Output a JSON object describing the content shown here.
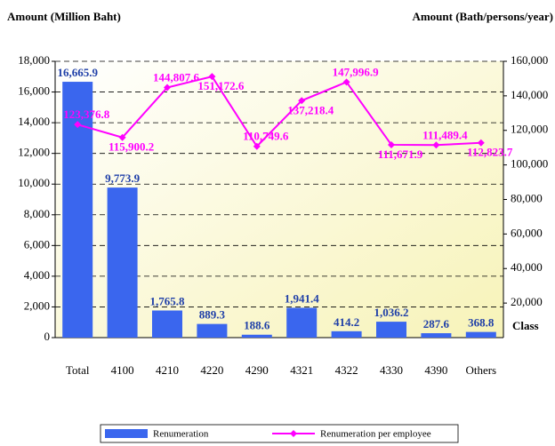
{
  "chart_data": {
    "type": "bar-line",
    "y_title": "Amount (Million Baht)",
    "y2_title": "Amount (Bath/persons/year)",
    "x_title": "Class",
    "categories": [
      "Total",
      "4100",
      "4210",
      "4220",
      "4290",
      "4321",
      "4322",
      "4330",
      "4390",
      "Others"
    ],
    "series": [
      {
        "name": "Renumeration",
        "type": "bar",
        "color": "#3a66ee",
        "values": [
          16665.9,
          9773.9,
          1765.8,
          889.3,
          188.6,
          1941.4,
          414.2,
          1036.2,
          287.6,
          368.8
        ],
        "value_labels": [
          "16,665.9",
          "9,773.9",
          "1,765.8",
          "889.3",
          "188.6",
          "1,941.4",
          "414.2",
          "1,036.2",
          "287.6",
          "368.8"
        ]
      },
      {
        "name": "Renumeration per employee",
        "type": "line",
        "axis": "y2",
        "color": "#ff00ff",
        "values": [
          123376.8,
          115900.2,
          144807.6,
          151172.6,
          110749.6,
          137218.4,
          147996.9,
          111671.9,
          111489.4,
          112823.7
        ],
        "value_labels": [
          "123,376.8",
          "115,900.2",
          "144,807.6",
          "151,172.6",
          "110,749.6",
          "137,218.4",
          "147,996.9",
          "111,671.9",
          "111,489.4",
          "112,823.7"
        ]
      }
    ],
    "ylim": [
      0,
      18000
    ],
    "yticks": [
      0,
      {
        "value": 2000,
        "label": "2,000"
      },
      {
        "value": 4000,
        "label": "4,000"
      },
      {
        "value": 6000,
        "label": "6,000"
      },
      {
        "value": 8000,
        "label": "8,000"
      },
      {
        "value": 10000,
        "label": "10,000"
      },
      {
        "value": 12000,
        "label": "12,000"
      },
      {
        "value": 14000,
        "label": "14,000"
      },
      {
        "value": 16000,
        "label": "16,000"
      },
      {
        "value": 18000,
        "label": "18,000"
      }
    ],
    "y2lim": [
      0,
      160000
    ],
    "y2ticks": [
      {
        "value": 20000,
        "label": "20,000"
      },
      {
        "value": 40000,
        "label": "40,000"
      },
      {
        "value": 60000,
        "label": "60,000"
      },
      {
        "value": 80000,
        "label": "80,000"
      },
      {
        "value": 100000,
        "label": "100,000"
      },
      {
        "value": 120000,
        "label": "120,000"
      },
      {
        "value": 140000,
        "label": "140,000"
      },
      {
        "value": 160000,
        "label": "160,000"
      }
    ],
    "grid": true,
    "legend": "bottom"
  }
}
